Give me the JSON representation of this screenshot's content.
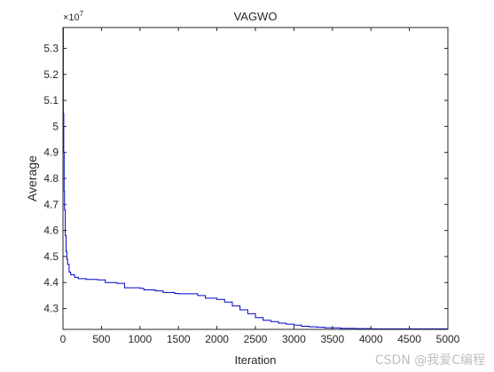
{
  "chart_data": {
    "type": "line",
    "title": "VAGWO",
    "xlabel": "Iteration",
    "ylabel": "Average",
    "y_exponent_label": "×10",
    "y_exponent_power": "7",
    "xlim": [
      0,
      5000
    ],
    "ylim": [
      4.22,
      5.38
    ],
    "x_ticks": [
      0,
      500,
      1000,
      1500,
      2000,
      2500,
      3000,
      3500,
      4000,
      4500,
      5000
    ],
    "x_tick_labels": [
      "0",
      "500",
      "1000",
      "1500",
      "2000",
      "2500",
      "3000",
      "3500",
      "4000",
      "4500",
      "5000"
    ],
    "y_ticks": [
      4.3,
      4.4,
      4.5,
      4.6,
      4.7,
      4.8,
      4.9,
      5.0,
      5.1,
      5.2,
      5.3
    ],
    "y_tick_labels": [
      "4.3",
      "4.4",
      "4.5",
      "4.6",
      "4.7",
      "4.8",
      "4.9",
      "5",
      "5.1",
      "5.2",
      "5.3"
    ],
    "grid": false,
    "line_color": "#0000cc",
    "series": [
      {
        "x": [
          0,
          5,
          10,
          15,
          20,
          30,
          40,
          50,
          60,
          80,
          100,
          150,
          200,
          300,
          450,
          550,
          700,
          800,
          1000,
          1050,
          1200,
          1300,
          1450,
          1500,
          1650,
          1750,
          1850,
          2000,
          2100,
          2200,
          2300,
          2400,
          2500,
          2600,
          2700,
          2800,
          2900,
          3000,
          3100,
          3200,
          3300,
          3400,
          3600,
          3800,
          4000,
          5000
        ],
        "values": [
          5.38,
          5.05,
          4.9,
          4.75,
          4.68,
          4.58,
          4.52,
          4.49,
          4.47,
          4.44,
          4.43,
          4.42,
          4.415,
          4.412,
          4.41,
          4.4,
          4.397,
          4.38,
          4.378,
          4.372,
          4.368,
          4.362,
          4.358,
          4.357,
          4.357,
          4.35,
          4.34,
          4.335,
          4.325,
          4.31,
          4.295,
          4.28,
          4.265,
          4.255,
          4.25,
          4.244,
          4.24,
          4.236,
          4.232,
          4.23,
          4.228,
          4.226,
          4.224,
          4.223,
          4.222,
          4.222
        ]
      }
    ]
  },
  "watermark": "CSDN @我爱C编程"
}
